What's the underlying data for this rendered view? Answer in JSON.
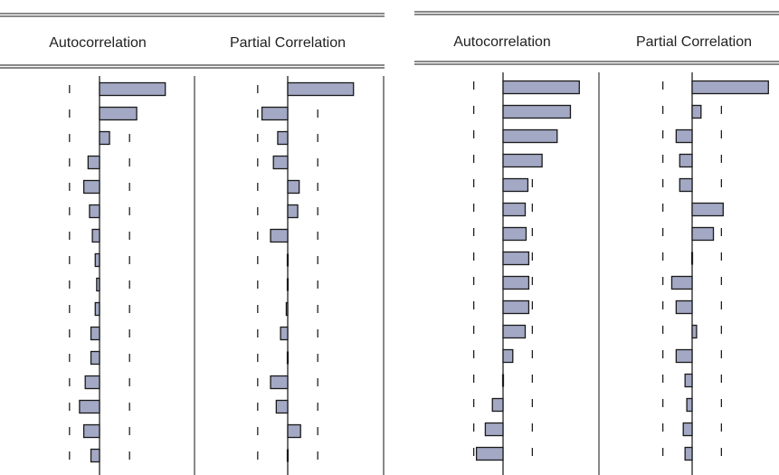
{
  "colors": {
    "bar_fill": "#a3a8c4",
    "bar_stroke": "#1a1a1a",
    "axis": "#111111",
    "guide": "#111111"
  },
  "chart_data": [
    {
      "type": "bar",
      "orientation": "horizontal",
      "title": "",
      "lags": [
        1,
        2,
        3,
        4,
        5,
        6,
        7,
        8,
        9,
        10,
        11,
        12,
        13,
        14,
        15,
        16
      ],
      "series": [
        {
          "name": "Autocorrelation",
          "values": [
            0.46,
            0.26,
            0.07,
            -0.08,
            -0.11,
            -0.07,
            -0.05,
            -0.03,
            -0.02,
            -0.03,
            -0.06,
            -0.06,
            -0.1,
            -0.14,
            -0.11,
            -0.06
          ]
        },
        {
          "name": "Partial Correlation",
          "values": [
            0.46,
            -0.18,
            -0.07,
            -0.1,
            0.08,
            0.07,
            -0.12,
            0.0,
            0.0,
            -0.01,
            -0.05,
            0.0,
            -0.12,
            -0.08,
            0.09,
            0.0
          ]
        }
      ],
      "confidence_band": 0.21,
      "xlim": [
        -0.25,
        0.7
      ]
    },
    {
      "type": "bar",
      "orientation": "horizontal",
      "title": "",
      "lags": [
        1,
        2,
        3,
        4,
        5,
        6,
        7,
        8,
        9,
        10,
        11,
        12,
        13,
        14,
        15,
        16
      ],
      "series": [
        {
          "name": "Autocorrelation",
          "values": [
            0.86,
            0.76,
            0.61,
            0.44,
            0.28,
            0.25,
            0.26,
            0.29,
            0.29,
            0.29,
            0.25,
            0.11,
            -0.01,
            -0.12,
            -0.2,
            -0.3
          ]
        },
        {
          "name": "Partial Correlation",
          "values": [
            0.86,
            0.1,
            -0.18,
            -0.14,
            -0.14,
            0.35,
            0.24,
            0.0,
            -0.23,
            -0.18,
            0.05,
            -0.18,
            -0.08,
            -0.06,
            -0.1,
            -0.08
          ]
        }
      ],
      "confidence_band": 0.33,
      "xlim": [
        -0.35,
        1.0
      ]
    }
  ]
}
